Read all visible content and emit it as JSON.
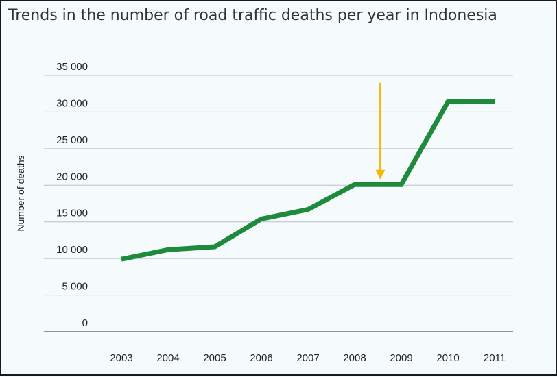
{
  "chart_data": {
    "type": "line",
    "title": "Trends in the number of road traffic deaths per year in Indonesia",
    "xlabel": "",
    "ylabel": "Number of deaths",
    "categories": [
      "2003",
      "2004",
      "2005",
      "2006",
      "2007",
      "2008",
      "2009",
      "2010",
      "2011"
    ],
    "series": [
      {
        "values": [
          9900,
          11200,
          11600,
          15400,
          16700,
          20100,
          20100,
          31400,
          31400
        ],
        "color": "#1e8a3c"
      }
    ],
    "y_ticks": [
      "0",
      "5 000",
      "10 000",
      "15 000",
      "20 000",
      "25 000",
      "30 000",
      "35 000"
    ],
    "ylim": [
      0,
      35000
    ],
    "grid": true,
    "annotation": {
      "type": "down-arrow",
      "x_between": [
        "2008",
        "2009"
      ],
      "x_fraction": 0.55,
      "y_from": 34000,
      "y_to": 20800,
      "color": "#f5b800"
    }
  }
}
